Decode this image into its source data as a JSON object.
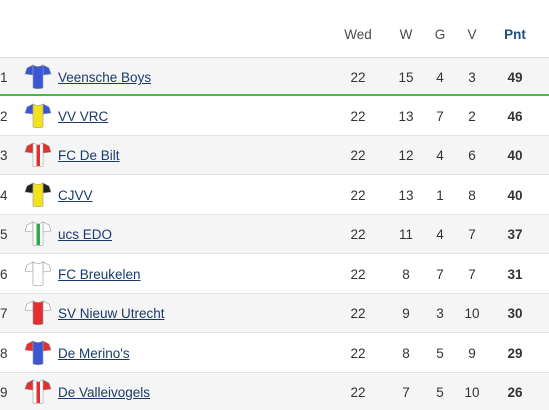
{
  "headers": {
    "played": "Wed",
    "won": "W",
    "drawn": "G",
    "lost": "V",
    "points": "Pnt"
  },
  "rows": [
    {
      "pos": "1",
      "team": "Veensche Boys",
      "pld": "22",
      "w": "15",
      "d": "4",
      "l": "3",
      "pts": "49",
      "kit_body": "#3a56d4",
      "kit_sleeve": "#3a56d4",
      "kit_stripe": "none"
    },
    {
      "pos": "2",
      "team": "VV VRC",
      "pld": "22",
      "w": "13",
      "d": "7",
      "l": "2",
      "pts": "46",
      "kit_body": "#f2e21a",
      "kit_sleeve": "#3a56d4",
      "kit_stripe": "none"
    },
    {
      "pos": "3",
      "team": "FC De Bilt",
      "pld": "22",
      "w": "12",
      "d": "4",
      "l": "6",
      "pts": "40",
      "kit_body": "#ffffff",
      "kit_sleeve": "#e03030",
      "kit_stripe": "red-center"
    },
    {
      "pos": "4",
      "team": "CJVV",
      "pld": "22",
      "w": "13",
      "d": "1",
      "l": "8",
      "pts": "40",
      "kit_body": "#f2e21a",
      "kit_sleeve": "#222222",
      "kit_stripe": "none"
    },
    {
      "pos": "5",
      "team": "ucs EDO",
      "pld": "22",
      "w": "11",
      "d": "4",
      "l": "7",
      "pts": "37",
      "kit_body": "#ffffff",
      "kit_sleeve": "#ffffff",
      "kit_stripe": "green-center"
    },
    {
      "pos": "6",
      "team": "FC Breukelen",
      "pld": "22",
      "w": "8",
      "d": "7",
      "l": "7",
      "pts": "31",
      "kit_body": "#ffffff",
      "kit_sleeve": "#ffffff",
      "kit_stripe": "none"
    },
    {
      "pos": "7",
      "team": "SV Nieuw Utrecht",
      "pld": "22",
      "w": "9",
      "d": "3",
      "l": "10",
      "pts": "30",
      "kit_body": "#e03030",
      "kit_sleeve": "#ffffff",
      "kit_stripe": "none"
    },
    {
      "pos": "8",
      "team": "De Merino's",
      "pld": "22",
      "w": "8",
      "d": "5",
      "l": "9",
      "pts": "29",
      "kit_body": "#3a56d4",
      "kit_sleeve": "#e03030",
      "kit_stripe": "none"
    },
    {
      "pos": "9",
      "team": "De Valleivogels",
      "pld": "22",
      "w": "7",
      "d": "5",
      "l": "10",
      "pts": "26",
      "kit_body": "#ffffff",
      "kit_sleeve": "#e03030",
      "kit_stripe": "red-center"
    }
  ]
}
